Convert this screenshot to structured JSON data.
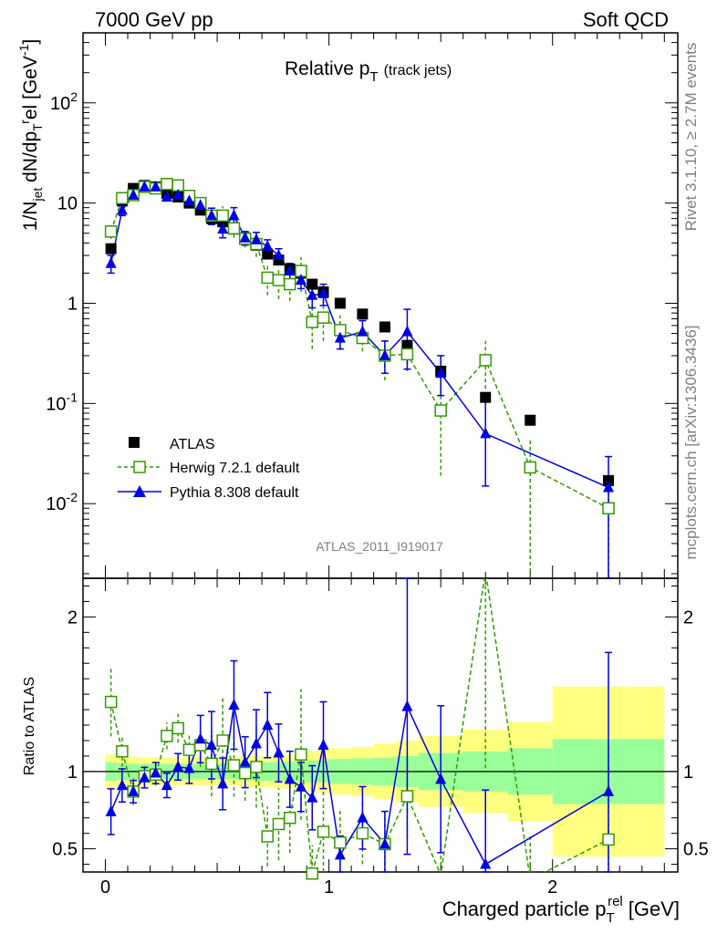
{
  "header": {
    "left": "7000 GeV pp",
    "right": "Soft QCD"
  },
  "side_labels": {
    "rivet": "Rivet 3.1.10, ≥ 2.7M events",
    "mcplots": "mcplots.cern.ch [arXiv:1306.3436]"
  },
  "analysis_id": "ATLAS_2011_I919017",
  "colors": {
    "atlas": "#000000",
    "herwig": "#339900",
    "pythia": "#0000e6",
    "band_inner": "#99ff99",
    "band_outer": "#ffff80"
  },
  "chart_data": [
    {
      "type": "scatter",
      "panel": "main",
      "title": "Relative p_T (track jets)",
      "title_main": "Relative p",
      "title_sub": "T",
      "title_paren": "(track jets)",
      "ylabel": "1/N_jet dN/dp_T^rel [GeV^-1]",
      "yscale": "log",
      "ylim": [
        0.0018,
        500
      ],
      "xlim": [
        -0.1,
        2.56
      ],
      "ytick_labels": [
        "10^-2",
        "10^-1",
        "1",
        "10",
        "10^2"
      ],
      "legend_position": "bottom-left",
      "series": [
        {
          "name": "ATLAS",
          "marker": "filled-square",
          "x": [
            0.025,
            0.075,
            0.125,
            0.175,
            0.225,
            0.275,
            0.325,
            0.375,
            0.425,
            0.475,
            0.525,
            0.575,
            0.625,
            0.675,
            0.725,
            0.775,
            0.825,
            0.875,
            0.925,
            0.975,
            1.05,
            1.15,
            1.25,
            1.35,
            1.5,
            1.7,
            1.9,
            2.25
          ],
          "y": [
            3.5,
            10.5,
            14.0,
            15.0,
            14.5,
            12.5,
            11.5,
            10.0,
            8.5,
            7.0,
            6.5,
            5.5,
            4.5,
            3.8,
            3.1,
            2.7,
            2.2,
            2.0,
            1.55,
            1.3,
            1.0,
            0.78,
            0.58,
            0.38,
            0.21,
            0.115,
            0.068,
            0.017
          ]
        },
        {
          "name": "Herwig 7.2.1 default",
          "marker": "open-square",
          "line": "dashed",
          "x": [
            0.025,
            0.075,
            0.125,
            0.175,
            0.225,
            0.275,
            0.325,
            0.375,
            0.425,
            0.475,
            0.525,
            0.575,
            0.625,
            0.675,
            0.725,
            0.775,
            0.825,
            0.875,
            0.925,
            0.975,
            1.05,
            1.15,
            1.25,
            1.35,
            1.5,
            1.7,
            1.9,
            2.25
          ],
          "y": [
            5.2,
            11.2,
            12.0,
            14.5,
            14.0,
            15.5,
            15.0,
            11.8,
            10.0,
            7.5,
            7.5,
            5.6,
            4.4,
            3.9,
            1.8,
            1.7,
            1.55,
            2.1,
            0.65,
            0.72,
            0.54,
            0.45,
            0.3,
            0.31,
            0.085,
            0.27,
            0.023,
            0.009
          ],
          "yerr_low": [
            0.8,
            1.0,
            1.2,
            1.0,
            1.0,
            1.1,
            1.1,
            1.0,
            1.2,
            1.5,
            1.8,
            1.1,
            0.8,
            1.0,
            0.6,
            0.6,
            0.5,
            0.8,
            0.3,
            0.3,
            0.2,
            0.12,
            0.13,
            0.1,
            0.066,
            0.13,
            0.0225,
            0.008
          ],
          "yerr_high": [
            0.8,
            1.0,
            1.2,
            1.0,
            1.0,
            1.1,
            1.1,
            1.0,
            1.2,
            1.5,
            1.8,
            1.1,
            0.8,
            1.0,
            0.6,
            0.6,
            0.5,
            0.8,
            0.35,
            0.35,
            0.22,
            0.15,
            0.13,
            0.1,
            0.07,
            0.15,
            0.022,
            0.01
          ]
        },
        {
          "name": "Pythia 8.308 default",
          "marker": "filled-triangle",
          "line": "solid",
          "x": [
            0.025,
            0.075,
            0.125,
            0.175,
            0.225,
            0.275,
            0.325,
            0.375,
            0.425,
            0.475,
            0.525,
            0.575,
            0.625,
            0.675,
            0.725,
            0.775,
            0.825,
            0.875,
            0.925,
            0.975,
            1.05,
            1.15,
            1.25,
            1.35,
            1.5,
            1.7,
            2.25
          ],
          "y": [
            2.5,
            8.5,
            12.0,
            14.5,
            14.5,
            11.5,
            12.0,
            10.5,
            9.5,
            7.5,
            5.5,
            7.5,
            4.5,
            4.3,
            3.7,
            3.0,
            2.1,
            1.7,
            1.2,
            1.25,
            0.45,
            0.52,
            0.3,
            0.52,
            0.2,
            0.05,
            0.0145
          ],
          "yerr_low": [
            0.5,
            1.0,
            1.0,
            1.0,
            1.0,
            1.0,
            1.0,
            1.0,
            1.2,
            1.4,
            1.0,
            1.5,
            0.7,
            0.8,
            0.6,
            0.5,
            0.4,
            0.3,
            0.3,
            0.3,
            0.1,
            0.12,
            0.1,
            0.3,
            0.08,
            0.035,
            0.013
          ],
          "yerr_high": [
            0.5,
            1.0,
            1.0,
            1.0,
            1.0,
            1.0,
            1.0,
            1.0,
            1.2,
            1.4,
            1.0,
            1.5,
            0.7,
            0.8,
            0.6,
            0.5,
            0.4,
            0.3,
            0.3,
            0.3,
            0.12,
            0.15,
            0.12,
            0.35,
            0.1,
            0.06,
            0.015
          ]
        }
      ]
    },
    {
      "type": "line",
      "panel": "ratio",
      "ylabel": "Ratio to ATLAS",
      "xlabel": "Charged particle p_T^rel [GeV]",
      "xlabel_main": "Charged particle p",
      "xlabel_sub": "T",
      "xlabel_sup": "rel",
      "xlabel_unit": "[GeV]",
      "xlim": [
        -0.1,
        2.56
      ],
      "ylim": [
        0.35,
        2.25
      ],
      "xtick_labels": [
        "0",
        "1",
        "2"
      ],
      "ytick_labels": [
        "0.5",
        "1",
        "2"
      ],
      "reference_line": 1,
      "uncertainty_bands": {
        "edges": [
          0.0,
          0.05,
          0.1,
          0.15,
          0.2,
          0.25,
          0.3,
          0.35,
          0.4,
          0.45,
          0.5,
          0.55,
          0.6,
          0.65,
          0.7,
          0.75,
          0.8,
          0.85,
          0.9,
          0.95,
          1.0,
          1.1,
          1.2,
          1.3,
          1.4,
          1.6,
          1.8,
          2.0,
          2.5
        ],
        "inner_halfwidth": [
          0.06,
          0.055,
          0.05,
          0.05,
          0.05,
          0.05,
          0.05,
          0.05,
          0.05,
          0.05,
          0.05,
          0.05,
          0.055,
          0.06,
          0.06,
          0.06,
          0.065,
          0.065,
          0.07,
          0.07,
          0.08,
          0.085,
          0.09,
          0.1,
          0.12,
          0.13,
          0.15,
          0.21
        ],
        "outer_halfwidth": [
          0.11,
          0.1,
          0.095,
          0.09,
          0.09,
          0.09,
          0.09,
          0.09,
          0.09,
          0.09,
          0.09,
          0.09,
          0.1,
          0.1,
          0.1,
          0.11,
          0.11,
          0.12,
          0.13,
          0.14,
          0.15,
          0.16,
          0.18,
          0.2,
          0.23,
          0.27,
          0.32,
          0.55
        ]
      },
      "series": [
        {
          "name": "Herwig 7.2.1 default",
          "x": [
            0.025,
            0.075,
            0.125,
            0.175,
            0.225,
            0.275,
            0.325,
            0.375,
            0.425,
            0.475,
            0.525,
            0.575,
            0.625,
            0.675,
            0.725,
            0.775,
            0.825,
            0.875,
            0.925,
            0.975,
            1.05,
            1.15,
            1.25,
            1.35,
            1.5,
            1.7,
            1.9,
            2.25
          ],
          "y": [
            1.45,
            1.13,
            0.87,
            0.97,
            0.98,
            1.23,
            1.28,
            1.14,
            1.17,
            1.05,
            1.2,
            1.04,
            0.99,
            1.03,
            0.58,
            0.66,
            0.7,
            1.11,
            0.34,
            0.61,
            0.54,
            0.6,
            0.53,
            0.84,
            0.33,
            2.3,
            0.3,
            0.56
          ]
        },
        {
          "name": "Pythia 8.308 default",
          "x": [
            0.025,
            0.075,
            0.125,
            0.175,
            0.225,
            0.275,
            0.325,
            0.375,
            0.425,
            0.475,
            0.525,
            0.575,
            0.625,
            0.675,
            0.725,
            0.775,
            0.825,
            0.875,
            0.925,
            0.975,
            1.05,
            1.15,
            1.25,
            1.35,
            1.5,
            1.7,
            2.25
          ],
          "y": [
            0.74,
            0.91,
            0.87,
            0.96,
            0.99,
            0.91,
            1.03,
            1.02,
            1.21,
            1.17,
            0.92,
            1.43,
            1.06,
            1.18,
            1.3,
            1.12,
            0.95,
            0.9,
            0.83,
            1.17,
            0.46,
            0.7,
            0.53,
            1.42,
            0.95,
            0.4,
            0.87
          ]
        }
      ]
    }
  ]
}
